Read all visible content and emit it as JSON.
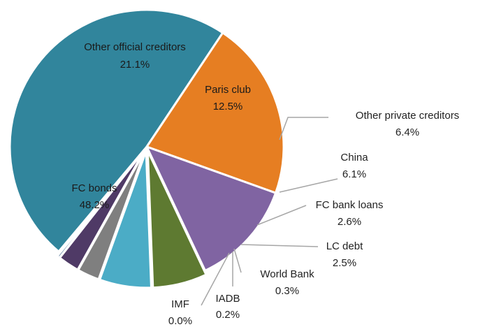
{
  "chart_data": {
    "type": "pie",
    "title": "",
    "slices": [
      {
        "name": "FC bonds",
        "value": 48.2,
        "label": "48.2%",
        "color": "#31859c"
      },
      {
        "name": "Other official creditors",
        "value": 21.1,
        "label": "21.1%",
        "color": "#e67e22"
      },
      {
        "name": "Paris club",
        "value": 12.5,
        "label": "12.5%",
        "color": "#8064a2"
      },
      {
        "name": "Other private creditors",
        "value": 6.4,
        "label": "6.4%",
        "color": "#5e7a31"
      },
      {
        "name": "China",
        "value": 6.1,
        "label": "6.1%",
        "color": "#4bacc6"
      },
      {
        "name": "FC bank loans",
        "value": 2.6,
        "label": "2.6%",
        "color": "#7f7f7f"
      },
      {
        "name": "LC debt",
        "value": 2.5,
        "label": "2.5%",
        "color": "#4f3a66"
      },
      {
        "name": "World Bank",
        "value": 0.3,
        "label": "0.3%",
        "color": "#1f4e79"
      },
      {
        "name": "IADB",
        "value": 0.2,
        "label": "0.2%",
        "color": "#c0504d"
      },
      {
        "name": "IMF",
        "value": 0.0,
        "label": "0.0%",
        "color": "#9bbb59"
      }
    ],
    "legend": "none"
  }
}
